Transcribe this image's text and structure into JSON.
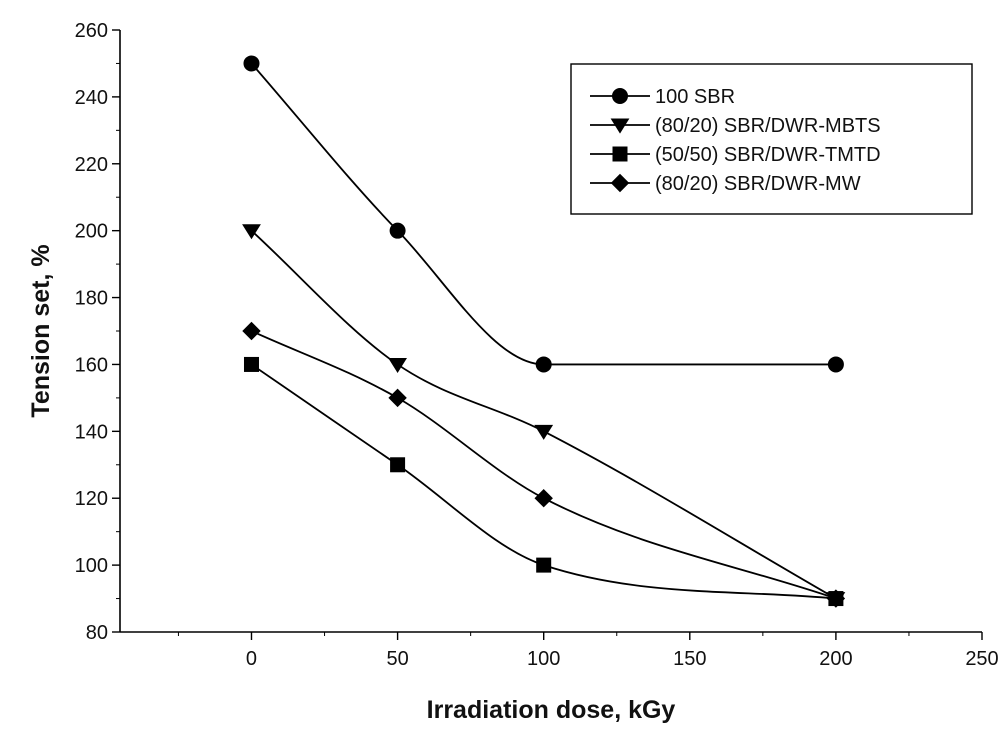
{
  "chart_data": {
    "type": "line",
    "title": "",
    "xlabel": "Irradiation dose, kGy",
    "ylabel": "Tension set, %",
    "xlim": [
      -45,
      250
    ],
    "ylim": [
      80,
      260
    ],
    "xticks": [
      0,
      50,
      100,
      150,
      200,
      250
    ],
    "xtick_labels": [
      "0",
      "50",
      "100",
      "150",
      "200",
      "250"
    ],
    "yticks": [
      80,
      100,
      120,
      140,
      160,
      180,
      200,
      220,
      240,
      260
    ],
    "ytick_labels": [
      "80",
      "100",
      "120",
      "140",
      "160",
      "180",
      "200",
      "220",
      "240",
      "260"
    ],
    "grid": false,
    "legend_position": "top-right",
    "x": [
      0,
      50,
      100,
      200
    ],
    "series": [
      {
        "name": "100 SBR",
        "marker": "circle",
        "values": [
          250,
          200,
          160,
          160
        ]
      },
      {
        "name": "(80/20) SBR/DWR-MBTS",
        "marker": "triangle-down",
        "values": [
          200,
          160,
          140,
          90
        ]
      },
      {
        "name": "(50/50) SBR/DWR-TMTD",
        "marker": "square",
        "values": [
          160,
          130,
          100,
          90
        ]
      },
      {
        "name": "(80/20) SBR/DWR-MW",
        "marker": "diamond",
        "values": [
          170,
          150,
          120,
          90
        ]
      }
    ],
    "line_color": "#000000"
  }
}
